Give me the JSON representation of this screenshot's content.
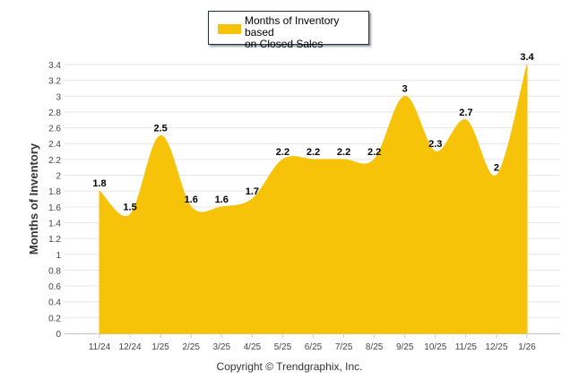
{
  "chart_data": {
    "type": "area",
    "title": "",
    "xlabel": "",
    "ylabel": "Months of Inventory",
    "categories": [
      "11/24",
      "12/24",
      "1/25",
      "2/25",
      "3/25",
      "4/25",
      "5/25",
      "6/25",
      "7/25",
      "8/25",
      "9/25",
      "10/25",
      "11/25",
      "12/25",
      "1/26"
    ],
    "series": [
      {
        "name": "Months of Inventory based on Closed Sales",
        "values": [
          1.8,
          1.5,
          2.5,
          1.6,
          1.6,
          1.7,
          2.2,
          2.2,
          2.2,
          2.2,
          3,
          2.3,
          2.7,
          2,
          3.4
        ],
        "color": "#f7c308"
      }
    ],
    "data_labels": [
      "1.8",
      "1.5",
      "2.5",
      "1.6",
      "1.6",
      "1.7",
      "2.2",
      "2.2",
      "2.2",
      "2.2",
      "3",
      "2.3",
      "2.7",
      "2",
      "3.4"
    ],
    "ylim": [
      0,
      3.4
    ],
    "yticks": [
      "0",
      "0.2",
      "0.4",
      "0.6",
      "0.8",
      "1",
      "1.2",
      "1.4",
      "1.6",
      "1.8",
      "2",
      "2.2",
      "2.4",
      "2.6",
      "2.8",
      "3",
      "3.2",
      "3.4"
    ],
    "grid": true,
    "legend_position": "top-center"
  },
  "legend": {
    "label_line1": "Months of Inventory based",
    "label_line2": "on Closed Sales"
  },
  "copyright": "Copyright © Trendgraphix, Inc."
}
